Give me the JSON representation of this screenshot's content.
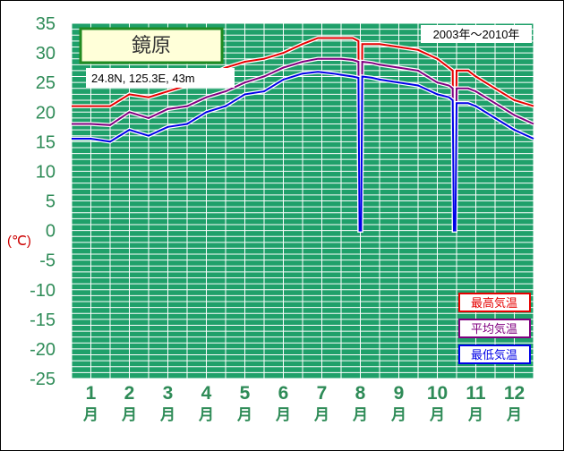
{
  "chart_data": {
    "type": "line",
    "title": "鏡原",
    "location_info": "24.8N,  125.3E,  43m",
    "period": "2003年〜2010年",
    "y_unit": "(℃)",
    "ylim": [
      -25,
      35
    ],
    "y_ticks": [
      "35",
      "30",
      "25",
      "20",
      "15",
      "10",
      "5",
      "0",
      "-5",
      "-10",
      "-15",
      "-20",
      "-25"
    ],
    "months": [
      "1",
      "2",
      "3",
      "4",
      "5",
      "6",
      "7",
      "8",
      "9",
      "10",
      "11",
      "12"
    ],
    "month_unit": "月",
    "grid": true,
    "legend_position": "bottom-right",
    "series": [
      {
        "name": "最高気温",
        "color": "#e60000",
        "x": [
          0,
          0.5,
          1,
          1.5,
          2,
          2.5,
          3,
          3.5,
          4,
          4.5,
          5,
          5.5,
          6,
          6.4,
          6.8,
          7,
          7.3,
          7.45,
          7.48,
          7.52,
          7.55,
          7.8,
          8,
          8.5,
          9,
          9.5,
          9.8,
          9.9,
          9.93,
          9.97,
          10,
          10.3,
          10.5,
          11,
          11.5,
          12
        ],
        "y": [
          21,
          21,
          21,
          23,
          22.5,
          23.5,
          24.5,
          26,
          27.5,
          28.5,
          29,
          30,
          31.5,
          32.5,
          32.5,
          32.5,
          32.5,
          32,
          0,
          0,
          31.5,
          31.5,
          31.5,
          31,
          30.5,
          29,
          27.5,
          27,
          0,
          0,
          27,
          27,
          26,
          24,
          22,
          21
        ]
      },
      {
        "name": "平均気温",
        "color": "#800080",
        "x": [
          0,
          0.5,
          1,
          1.5,
          2,
          2.5,
          3,
          3.5,
          4,
          4.5,
          5,
          5.5,
          6,
          6.4,
          6.8,
          7,
          7.3,
          7.45,
          7.48,
          7.52,
          7.55,
          7.8,
          8,
          8.5,
          9,
          9.5,
          9.8,
          9.9,
          9.93,
          9.97,
          10,
          10.3,
          10.5,
          11,
          11.5,
          12
        ],
        "y": [
          18,
          18,
          17.8,
          20,
          19,
          20.5,
          21,
          22.5,
          23.5,
          25,
          26,
          27.5,
          28.5,
          29,
          29,
          29,
          28.8,
          28.5,
          0,
          0,
          28.5,
          28.3,
          28,
          27.5,
          27,
          25,
          24.5,
          24,
          0,
          0,
          24,
          24,
          23.5,
          21.5,
          19.5,
          18
        ]
      },
      {
        "name": "最低気温",
        "color": "#0000e6",
        "x": [
          0,
          0.5,
          1,
          1.5,
          2,
          2.5,
          3,
          3.5,
          4,
          4.5,
          5,
          5.5,
          6,
          6.4,
          6.8,
          7,
          7.3,
          7.45,
          7.48,
          7.52,
          7.55,
          7.8,
          8,
          8.5,
          9,
          9.5,
          9.8,
          9.9,
          9.93,
          9.97,
          10,
          10.3,
          10.5,
          11,
          11.5,
          12
        ],
        "y": [
          15.5,
          15.5,
          15,
          17,
          16,
          17.5,
          18,
          20,
          21,
          23,
          23.5,
          25.5,
          26.5,
          26.8,
          26.5,
          26.3,
          26,
          25.8,
          0,
          0,
          26,
          25.8,
          25.5,
          25,
          24.5,
          23,
          22.5,
          22,
          0,
          0,
          21.5,
          21.5,
          21,
          19,
          17,
          15.5
        ]
      }
    ]
  }
}
